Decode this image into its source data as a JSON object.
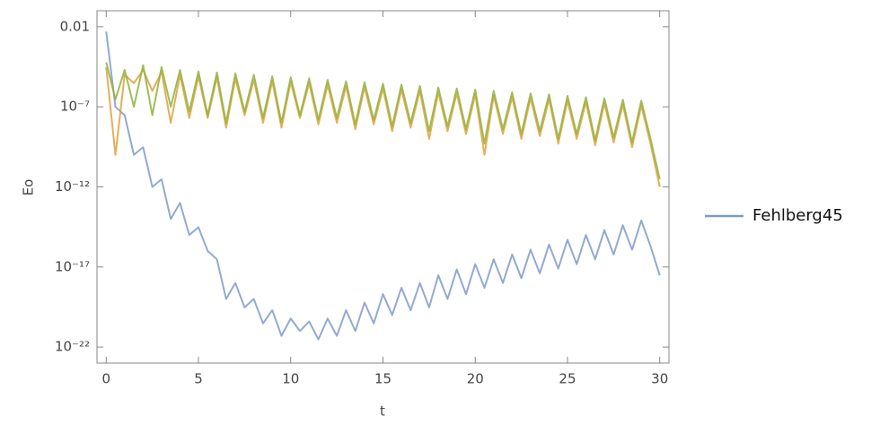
{
  "chart_data": {
    "type": "line",
    "xlabel": "t",
    "ylabel": "Eo",
    "log_y": true,
    "xlim": [
      -0.5,
      30.5
    ],
    "xticks": [
      0,
      5,
      10,
      15,
      20,
      25,
      30
    ],
    "ylim": [
      1e-23,
      0.1
    ],
    "yticks": [
      0.01,
      {
        "value": 1e-07,
        "label": "10⁻⁷"
      },
      {
        "value": 1e-12,
        "label": "10⁻¹²"
      },
      {
        "value": 1e-17,
        "label": "10⁻¹⁷"
      },
      {
        "value": 1e-22,
        "label": "10⁻²²"
      }
    ],
    "legend": "right",
    "x": [
      0,
      0.5,
      1,
      1.5,
      2,
      2.5,
      3,
      3.5,
      4,
      4.5,
      5,
      5.5,
      6,
      6.5,
      7,
      7.5,
      8,
      8.5,
      9,
      9.5,
      10,
      10.5,
      11,
      11.5,
      12,
      12.5,
      13,
      13.5,
      14,
      14.5,
      15,
      15.5,
      16,
      16.5,
      17,
      17.5,
      18,
      18.5,
      19,
      19.5,
      20,
      20.5,
      21,
      21.5,
      22,
      22.5,
      23,
      23.5,
      24,
      24.5,
      25,
      25.5,
      26,
      26.5,
      27,
      27.5,
      28,
      28.5,
      29,
      29.5,
      30
    ],
    "series": [
      {
        "name": "Fehlberg45",
        "color": "#7f9bc9",
        "values": [
          0.005,
          1e-07,
          3e-08,
          1e-10,
          3e-10,
          1e-12,
          3e-12,
          1e-14,
          1e-13,
          1e-15,
          3e-15,
          1e-16,
          3e-17,
          1e-19,
          1e-18,
          3e-20,
          1e-19,
          3e-21,
          2e-20,
          5e-22,
          6e-21,
          1e-21,
          4e-21,
          3e-22,
          6e-21,
          5e-22,
          2e-20,
          1e-21,
          6e-20,
          3e-21,
          2e-19,
          1e-20,
          5e-19,
          2e-20,
          1e-18,
          3e-20,
          3e-18,
          1e-19,
          7e-18,
          2e-19,
          1.5e-17,
          5e-19,
          3e-17,
          1e-18,
          6e-17,
          2e-18,
          1.2e-16,
          4e-18,
          2.5e-16,
          8e-18,
          5e-16,
          1.5e-17,
          1e-15,
          3e-17,
          2e-15,
          6e-17,
          4e-15,
          1.2e-16,
          8e-15,
          2e-16,
          3e-18
        ]
      },
      {
        "color": "#e0a040",
        "values": [
          3e-05,
          1e-10,
          1e-05,
          3e-06,
          2e-05,
          1e-06,
          1.5e-05,
          1e-08,
          1e-05,
          2e-08,
          8e-06,
          2e-08,
          7e-06,
          5e-09,
          6e-06,
          3e-08,
          5e-06,
          1e-08,
          4e-06,
          5e-09,
          3.5e-06,
          2e-08,
          3e-06,
          8e-09,
          2.4e-06,
          1e-08,
          2e-06,
          4e-09,
          1.7e-06,
          8e-09,
          1.4e-06,
          3e-09,
          1.2e-06,
          5e-09,
          1e-06,
          1e-09,
          8e-07,
          3e-09,
          7e-07,
          2e-09,
          6e-07,
          1e-10,
          5e-07,
          2e-09,
          4e-07,
          1e-09,
          3.5e-07,
          1.5e-09,
          3e-07,
          5e-10,
          2.4e-07,
          1e-09,
          2e-07,
          4e-10,
          1.7e-07,
          6e-10,
          1.4e-07,
          3e-10,
          1.2e-07,
          5e-10,
          1e-12
        ]
      },
      {
        "color": "#8fb23a",
        "values": [
          6e-05,
          3e-07,
          2e-05,
          1e-07,
          4e-05,
          3e-08,
          3e-05,
          1e-07,
          2e-05,
          5e-08,
          1.6e-05,
          3e-08,
          1.4e-05,
          1e-08,
          1.2e-05,
          5e-08,
          1e-05,
          2e-08,
          8e-06,
          1e-08,
          7e-06,
          3e-08,
          6e-06,
          1.5e-08,
          4.8e-06,
          2e-08,
          4e-06,
          8e-09,
          3.4e-06,
          1.5e-08,
          2.8e-06,
          6e-09,
          2.4e-06,
          1e-08,
          2e-06,
          3e-09,
          1.6e-06,
          6e-09,
          1.4e-06,
          4e-09,
          1.2e-06,
          5e-10,
          1e-06,
          4e-09,
          8e-07,
          2e-09,
          7e-07,
          3e-09,
          6e-07,
          1e-09,
          4.8e-07,
          2e-09,
          4e-07,
          8e-10,
          3.4e-07,
          1.2e-09,
          2.8e-07,
          6e-10,
          2.4e-07,
          1e-09,
          3e-12
        ]
      }
    ]
  }
}
